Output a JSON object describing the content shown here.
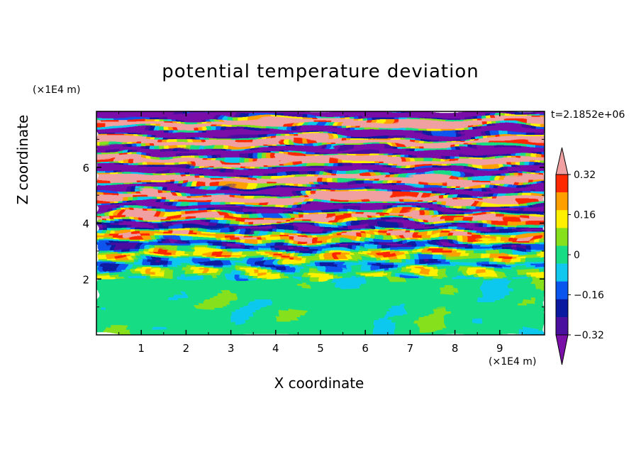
{
  "chart_data": {
    "type": "heatmap",
    "title": "potential temperature deviation",
    "xlabel": "X coordinate",
    "ylabel": "Z coordinate",
    "x_unit": "(×1E4 m)",
    "y_unit": "(×1E4 m)",
    "time_label": "t=2.1852e+06",
    "xlim": [
      0,
      10
    ],
    "ylim": [
      0,
      8
    ],
    "x_ticks": [
      1,
      2,
      3,
      4,
      5,
      6,
      7,
      8,
      9
    ],
    "y_ticks": [
      2,
      4,
      6
    ],
    "colorbar": {
      "levels": [
        -0.4,
        -0.32,
        -0.24,
        -0.16,
        -0.08,
        0,
        0.08,
        0.16,
        0.24,
        0.32,
        0.4
      ],
      "tick_labels": [
        "0.32",
        "0.16",
        "0",
        "−0.16",
        "−0.32"
      ],
      "tick_values": [
        0.32,
        0.16,
        0,
        -0.16,
        -0.32
      ],
      "colors_low_to_high": [
        "#7a0fa8",
        "#4b0fa0",
        "#0a1aa0",
        "#0a55ee",
        "#10c8ee",
        "#18dc84",
        "#86e01c",
        "#fff000",
        "#ff9f00",
        "#ff2800",
        "#f0a0a0"
      ],
      "under_color": "#7a0fa8",
      "over_color": "#f0a0a0"
    },
    "field_description": {
      "lower_region_top_z": 2.0,
      "lower_region_value": "near 0 (green/light green)",
      "upper_region": "horizontal banded alternating positive (pink) and negative (purple) deviations"
    }
  }
}
